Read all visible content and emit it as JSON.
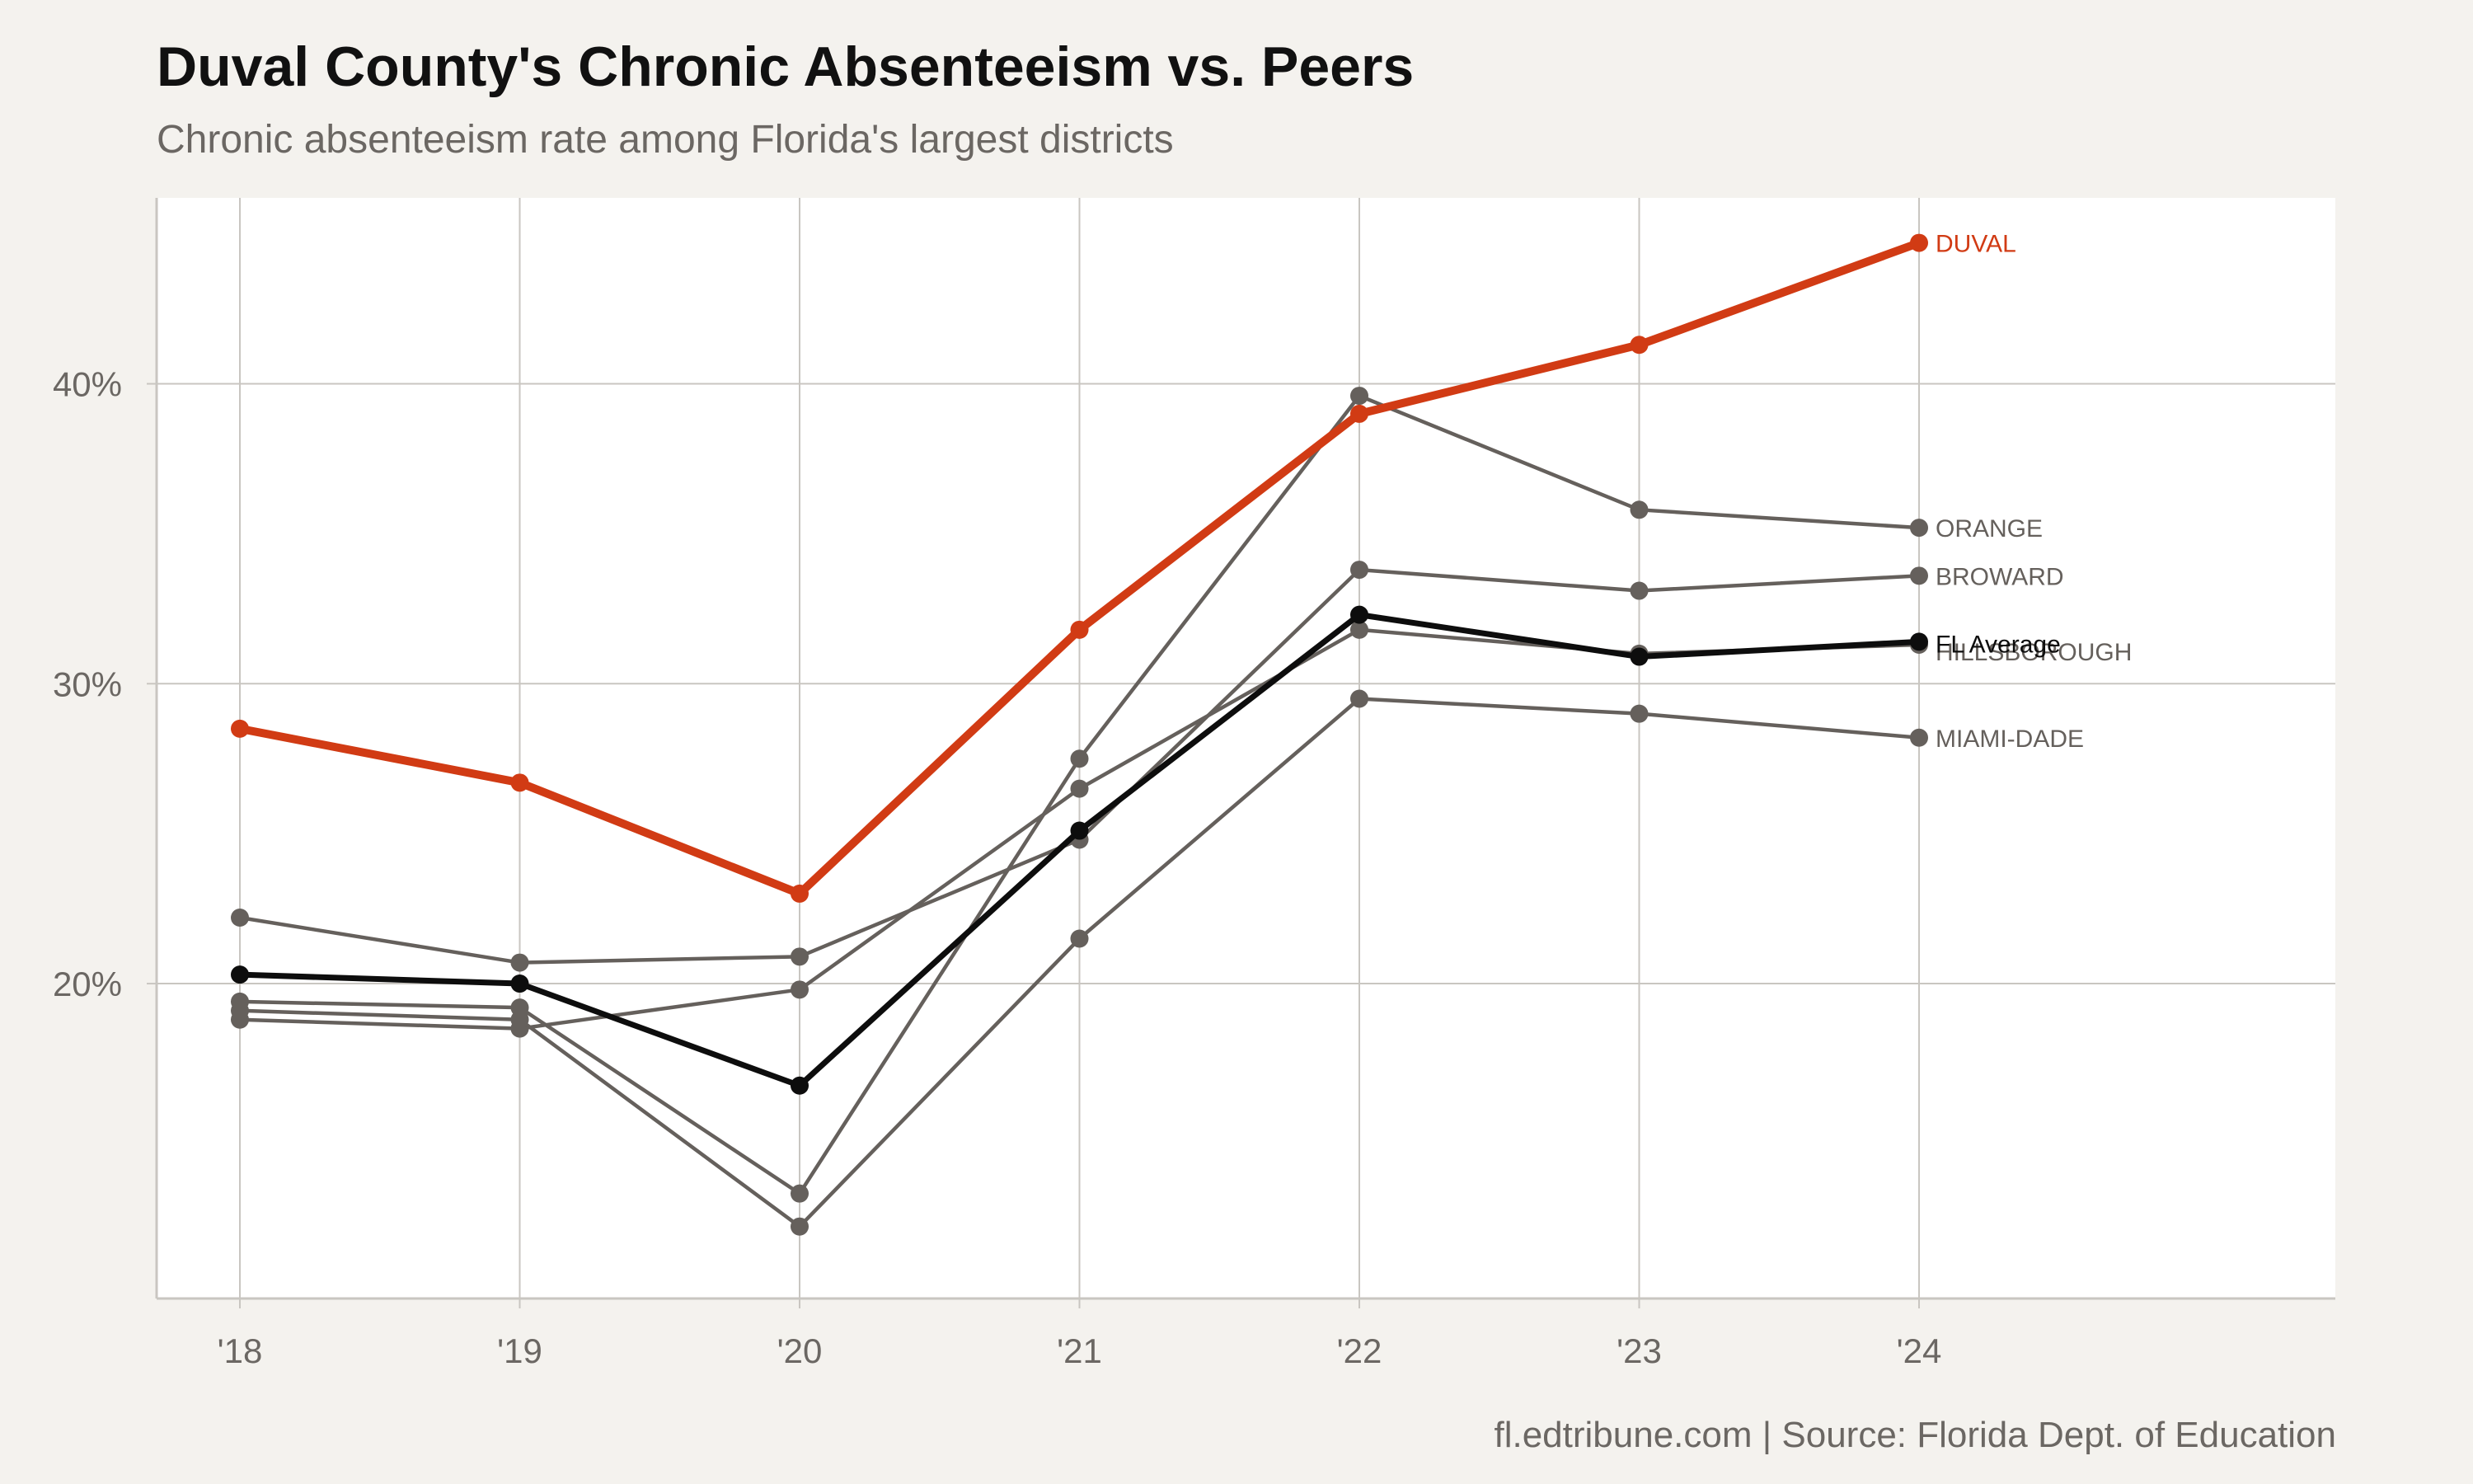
{
  "title": "Duval County's Chronic Absenteeism vs. Peers",
  "subtitle": "Chronic absenteeism rate among Florida's largest districts",
  "caption": "fl.edtribune.com | Source: Florida Dept. of Education",
  "colors": {
    "background": "#f4f2ee",
    "panel": "#ffffff",
    "grid": "#c9c6c1",
    "highlight": "#d13b14",
    "average": "#0d0d0d",
    "peer": "#65605c",
    "text_muted": "#6b6763"
  },
  "chart_data": {
    "type": "line",
    "title": "Duval County's Chronic Absenteeism vs. Peers",
    "subtitle": "Chronic absenteeism rate among Florida's largest districts",
    "xlabel": "",
    "ylabel": "",
    "categories": [
      "'18",
      "'19",
      "'20",
      "'21",
      "'22",
      "'23",
      "'24"
    ],
    "yticks": [
      20,
      30,
      40
    ],
    "ytick_labels": [
      "20%",
      "30%",
      "40%"
    ],
    "ylim": [
      9.5,
      46.2
    ],
    "grid": true,
    "legend": "direct labels at right end of lines",
    "series": [
      {
        "name": "ORANGE",
        "label": "ORANGE",
        "role": "peer",
        "values": [
          19.4,
          19.2,
          13.0,
          27.5,
          39.6,
          35.8,
          35.2
        ]
      },
      {
        "name": "BROWARD",
        "label": "BROWARD",
        "role": "peer",
        "values": [
          22.2,
          20.7,
          20.9,
          24.8,
          33.8,
          33.1,
          33.6
        ]
      },
      {
        "name": "HILLSBOROUGH",
        "label": "HILLSBOROUGH",
        "role": "peer",
        "values": [
          18.8,
          18.5,
          19.8,
          26.5,
          31.8,
          31.0,
          31.3
        ]
      },
      {
        "name": "MIAMI-DADE",
        "label": "MIAMI-DADE",
        "role": "peer",
        "values": [
          19.1,
          18.8,
          11.9,
          21.5,
          29.5,
          29.0,
          28.2
        ]
      },
      {
        "name": "FL Average",
        "label": "FL Average",
        "role": "average",
        "values": [
          20.3,
          20.0,
          16.6,
          25.1,
          32.3,
          30.9,
          31.4
        ]
      },
      {
        "name": "DUVAL",
        "label": "DUVAL",
        "role": "highlight",
        "values": [
          28.5,
          26.7,
          23.0,
          31.8,
          39.0,
          41.3,
          44.7
        ]
      }
    ]
  }
}
